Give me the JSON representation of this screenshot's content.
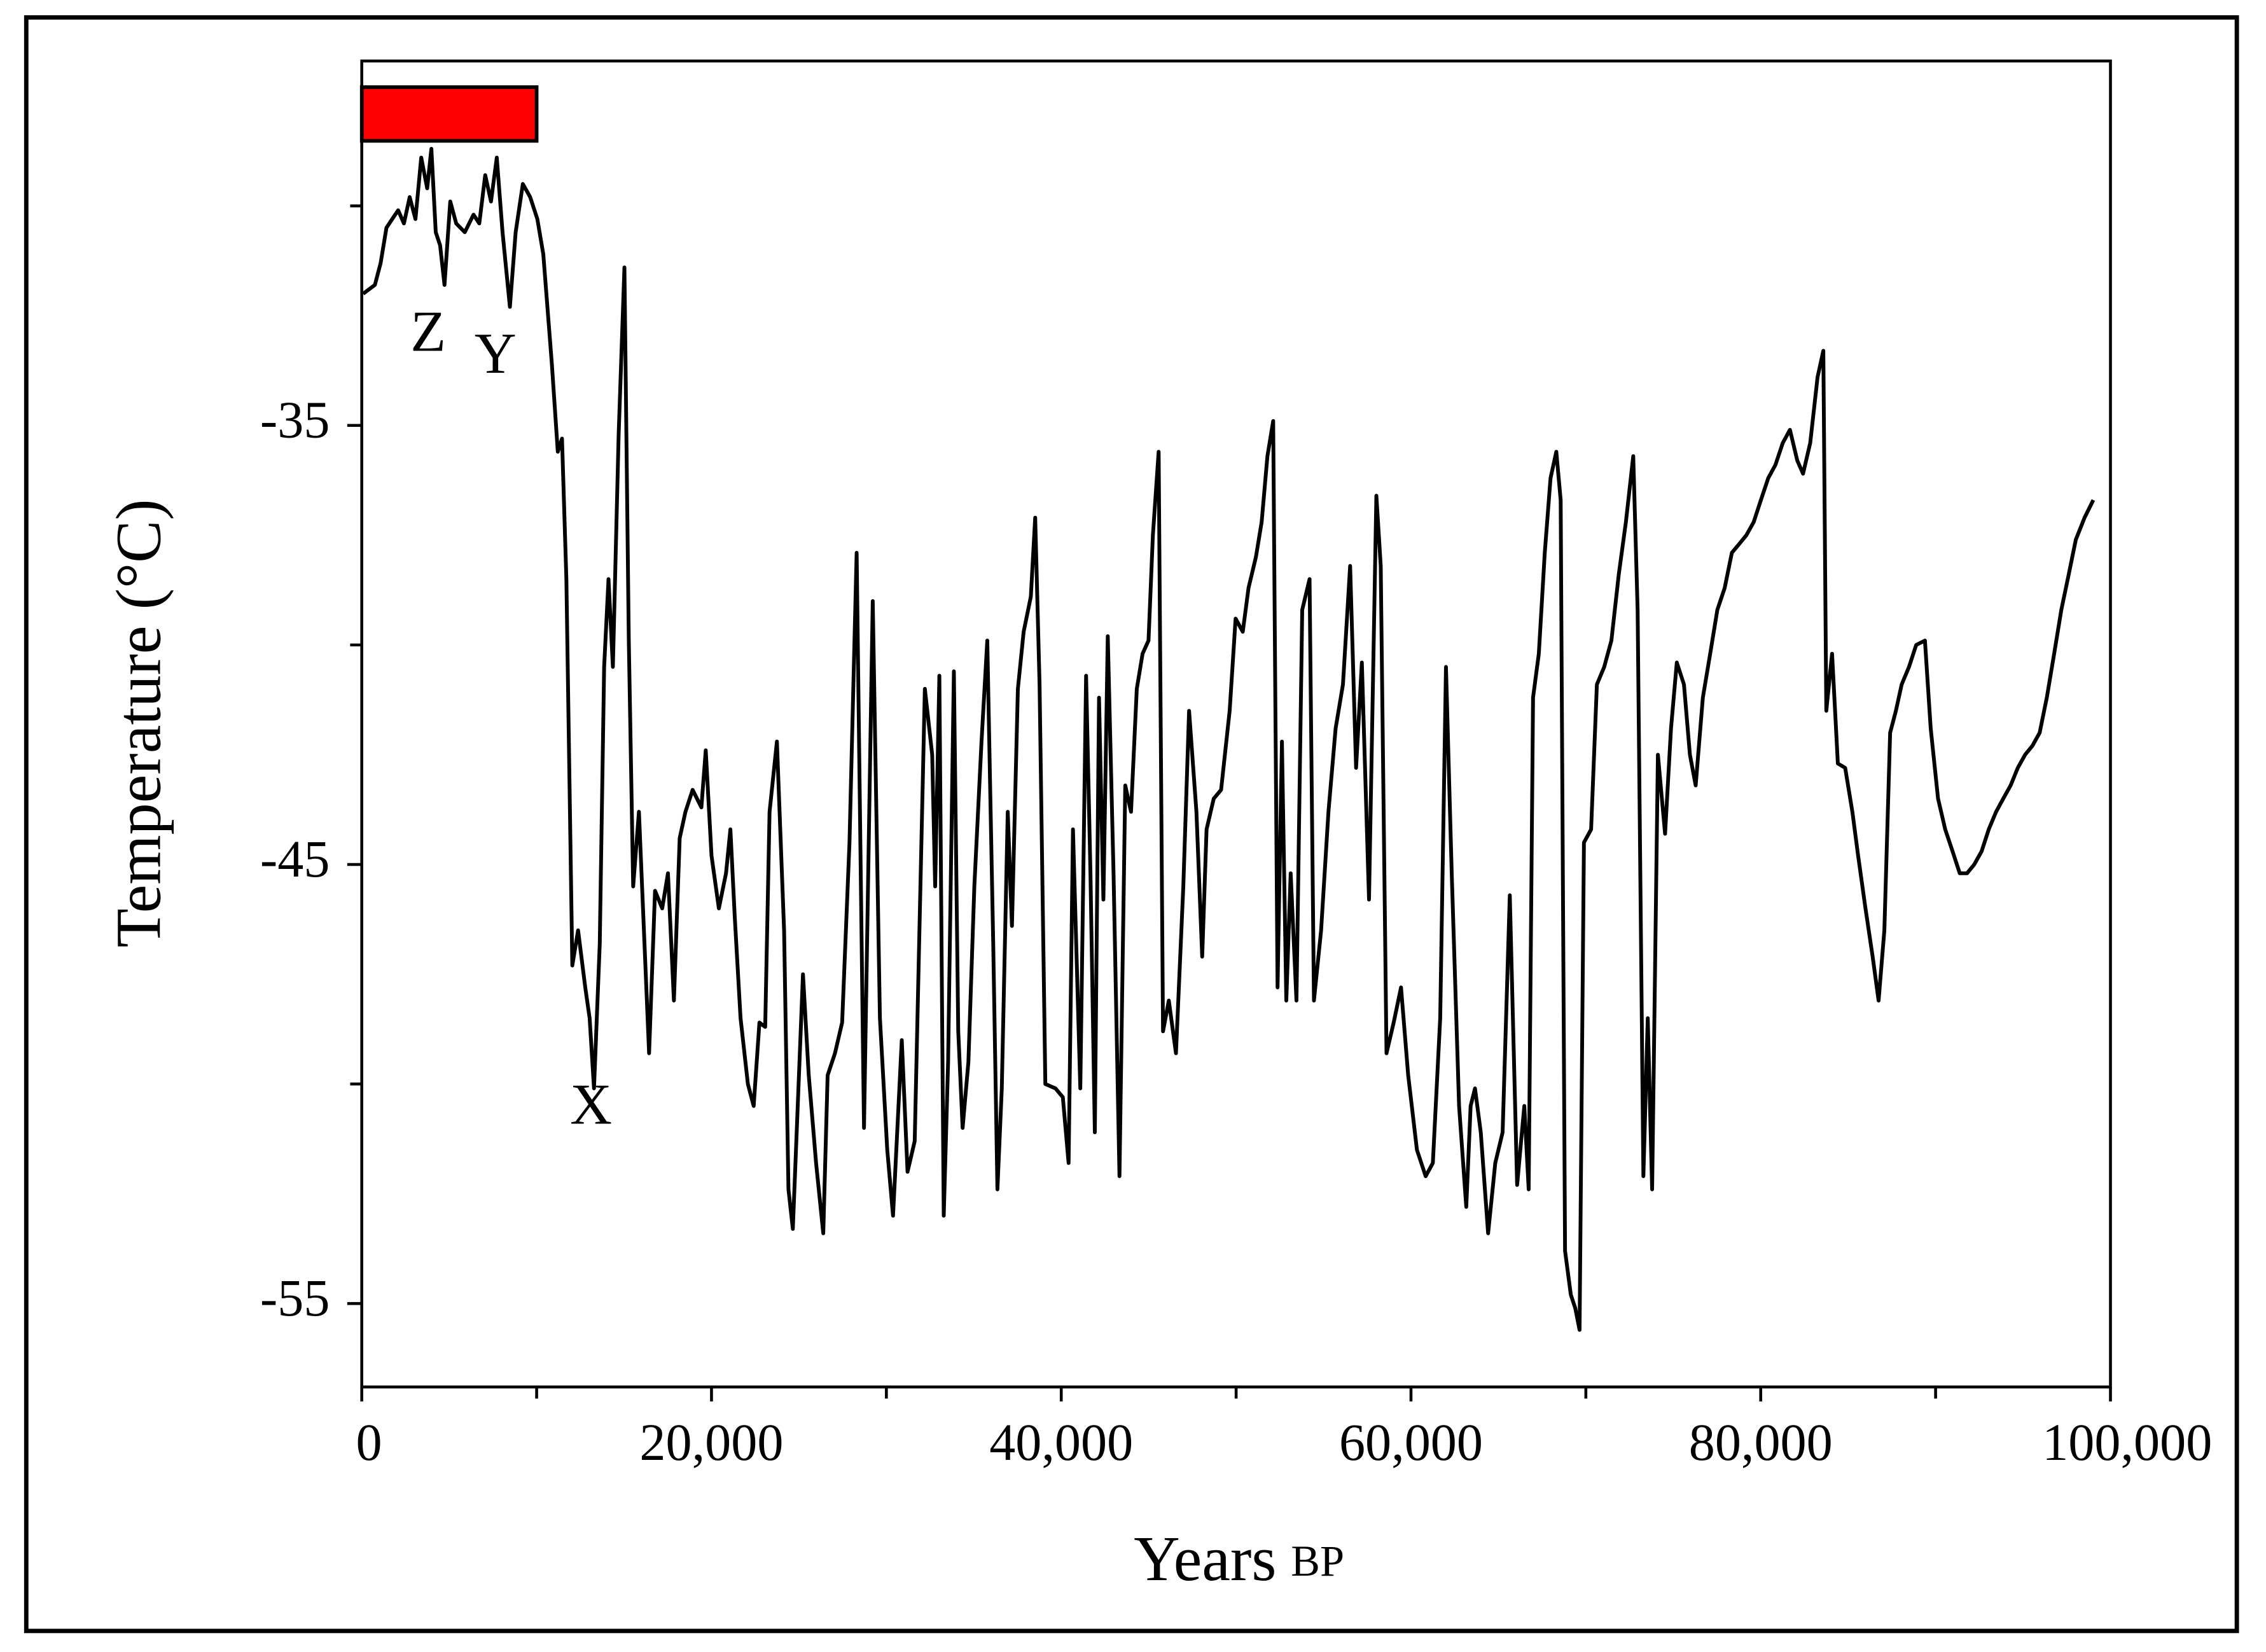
{
  "chart_data": {
    "type": "line",
    "ylabel": "Temperature (°C)",
    "xlabel": "Years",
    "xlabel_unit": "BP",
    "color": "#000000",
    "xlim": [
      0,
      100000
    ],
    "ylim": [
      -56.9,
      -26.7
    ],
    "xticks": [
      0,
      {
        "value": 20000,
        "label": "20,000"
      },
      {
        "value": 40000,
        "label": "40,000"
      },
      {
        "value": 60000,
        "label": "60,000"
      },
      {
        "value": 80000,
        "label": "80,000"
      },
      {
        "value": 100000,
        "label": "100,000"
      }
    ],
    "minor_xticks": [
      10000,
      30000,
      50000,
      70000,
      90000
    ],
    "yticks": [
      -35,
      -45,
      -55
    ],
    "minor_yticks": [
      -30,
      -40,
      -50
    ],
    "highlight": {
      "x": [
        0,
        10000
      ],
      "color": "#ff0000"
    },
    "annotations": [
      {
        "text": "Z",
        "x": 3800,
        "y": -33.0
      },
      {
        "text": "Y",
        "x": 7640,
        "y": -33.5
      },
      {
        "text": "X",
        "x": 13110,
        "y": -50.6
      }
    ],
    "x": [
      80,
      750,
      1080,
      1410,
      1740,
      2080,
      2410,
      2740,
      3070,
      3400,
      3740,
      3980,
      4230,
      4480,
      4730,
      5060,
      5400,
      5890,
      6390,
      6720,
      7060,
      7390,
      7720,
      8050,
      8470,
      8800,
      9210,
      9630,
      10040,
      10380,
      10870,
      11210,
      11450,
      11700,
      12040,
      12370,
      12780,
      13030,
      13280,
      13610,
      13860,
      14110,
      14360,
      14690,
      15020,
      15270,
      15520,
      15850,
      16430,
      16770,
      17180,
      17510,
      17850,
      18180,
      18510,
      18920,
      19420,
      19670,
      20000,
      20420,
      20830,
      21080,
      21330,
      21660,
      22080,
      22410,
      22740,
      23070,
      23320,
      23740,
      24150,
      24400,
      24650,
      24900,
      25230,
      25560,
      25980,
      26390,
      26640,
      27060,
      27470,
      27890,
      28300,
      28720,
      29220,
      29630,
      30050,
      30380,
      30880,
      31210,
      31620,
      32200,
      32620,
      32790,
      33030,
      33280,
      33530,
      33860,
      34110,
      34360,
      34690,
      35030,
      35440,
      35770,
      36110,
      36350,
      36600,
      36940,
      37180,
      37520,
      37850,
      38260,
      38510,
      38760,
      39090,
      39670,
      40090,
      40420,
      40670,
      41090,
      41420,
      41670,
      41920,
      42160,
      42410,
      42660,
      42990,
      43330,
      43660,
      43990,
      44320,
      44650,
      44990,
      45240,
      45570,
      45820,
      46150,
      46560,
      46980,
      47310,
      47730,
      48060,
      48310,
      48720,
      49140,
      49630,
      49970,
      50380,
      50710,
      51130,
      51460,
      51790,
      52120,
      52370,
      52620,
      52870,
      53120,
      53450,
      53780,
      54200,
      54450,
      54860,
      55280,
      55690,
      56110,
      56520,
      56860,
      57190,
      57600,
      58020,
      58270,
      58600,
      59010,
      59430,
      59840,
      60340,
      60840,
      61250,
      61670,
      62000,
      62330,
      62750,
      63160,
      63410,
      63660,
      63990,
      64410,
      64820,
      65240,
      65650,
      66070,
      66480,
      66730,
      66980,
      67310,
      67650,
      67980,
      68310,
      68560,
      68810,
      69140,
      69390,
      69640,
      69890,
      70300,
      70630,
      71050,
      71460,
      71880,
      72290,
      72710,
      72960,
      73290,
      73540,
      73790,
      74120,
      74530,
      74870,
      75200,
      75610,
      75950,
      76280,
      76690,
      77110,
      77520,
      77940,
      78350,
      78770,
      79180,
      79600,
      80010,
      80430,
      80840,
      81260,
      81670,
      82090,
      82420,
      82830,
      83250,
      83580,
      83750,
      84080,
      84410,
      84830,
      85240,
      85570,
      85990,
      86400,
      86740,
      87070,
      87400,
      87730,
      88060,
      88480,
      88890,
      89390,
      89720,
      90140,
      90550,
      90970,
      91380,
      91800,
      92210,
      92630,
      93040,
      93460,
      93870,
      94290,
      94700,
      95120,
      95530,
      95950,
      96360,
      96780,
      97190,
      97610,
      98020,
      98520,
      99020
    ],
    "values": [
      -32.0,
      -31.8,
      -31.3,
      -30.5,
      -30.3,
      -30.1,
      -30.4,
      -29.8,
      -30.3,
      -28.9,
      -29.6,
      -28.7,
      -30.6,
      -30.9,
      -31.8,
      -29.9,
      -30.4,
      -30.6,
      -30.2,
      -30.4,
      -29.3,
      -29.9,
      -28.9,
      -30.6,
      -32.3,
      -30.6,
      -29.5,
      -29.8,
      -30.3,
      -31.1,
      -33.6,
      -35.6,
      -35.3,
      -38.5,
      -47.3,
      -46.5,
      -47.8,
      -48.5,
      -50.1,
      -46.8,
      -40.5,
      -38.5,
      -40.5,
      -35.2,
      -31.4,
      -39.9,
      -45.5,
      -43.8,
      -49.3,
      -45.6,
      -46.0,
      -45.2,
      -48.1,
      -44.4,
      -43.8,
      -43.3,
      -43.7,
      -42.4,
      -44.8,
      -46.0,
      -45.2,
      -44.2,
      -46.2,
      -48.5,
      -50.0,
      -50.5,
      -48.6,
      -48.7,
      -43.8,
      -42.2,
      -46.5,
      -52.4,
      -53.3,
      -50.8,
      -47.5,
      -49.8,
      -51.8,
      -53.4,
      -49.8,
      -49.3,
      -48.6,
      -44.5,
      -37.9,
      -51.0,
      -39.0,
      -48.5,
      -51.5,
      -53.0,
      -49.0,
      -52.0,
      -51.3,
      -41.0,
      -42.5,
      -45.5,
      -40.7,
      -53.0,
      -49.5,
      -40.6,
      -48.8,
      -51.0,
      -49.5,
      -45.5,
      -42.2,
      -39.9,
      -46.8,
      -52.4,
      -50.1,
      -43.8,
      -46.4,
      -41.0,
      -39.7,
      -38.9,
      -37.1,
      -40.9,
      -50.0,
      -50.1,
      -50.3,
      -51.8,
      -44.2,
      -50.1,
      -40.7,
      -45.2,
      -51.1,
      -41.2,
      -45.8,
      -39.8,
      -45.2,
      -52.1,
      -43.2,
      -43.8,
      -41.0,
      -40.2,
      -39.9,
      -37.5,
      -35.6,
      -48.8,
      -48.1,
      -49.3,
      -45.5,
      -41.5,
      -43.8,
      -47.1,
      -44.2,
      -43.5,
      -43.3,
      -41.5,
      -39.4,
      -39.7,
      -38.7,
      -38.0,
      -37.2,
      -35.7,
      -34.9,
      -47.8,
      -42.2,
      -48.1,
      -45.2,
      -48.1,
      -39.2,
      -38.5,
      -48.1,
      -46.5,
      -43.8,
      -41.9,
      -40.9,
      -38.2,
      -42.8,
      -40.4,
      -45.8,
      -36.6,
      -38.2,
      -49.3,
      -48.6,
      -47.8,
      -49.8,
      -51.5,
      -52.1,
      -51.8,
      -48.5,
      -40.5,
      -45.2,
      -50.5,
      -52.8,
      -50.5,
      -50.1,
      -51.1,
      -53.4,
      -51.8,
      -51.1,
      -45.7,
      -52.3,
      -50.5,
      -52.4,
      -41.2,
      -40.2,
      -37.9,
      -36.2,
      -35.6,
      -36.7,
      -53.8,
      -54.8,
      -55.1,
      -55.6,
      -44.5,
      -44.2,
      -40.9,
      -40.5,
      -39.9,
      -38.4,
      -37.2,
      -35.7,
      -39.2,
      -52.1,
      -48.5,
      -52.4,
      -42.5,
      -44.3,
      -41.9,
      -40.4,
      -40.9,
      -42.5,
      -43.2,
      -41.2,
      -40.2,
      -39.2,
      -38.7,
      -37.9,
      -37.7,
      -37.5,
      -37.2,
      -36.7,
      -36.2,
      -35.9,
      -35.4,
      -35.1,
      -35.8,
      -36.1,
      -35.4,
      -33.9,
      -33.3,
      -41.5,
      -40.2,
      -42.7,
      -42.8,
      -43.8,
      -44.8,
      -46.0,
      -47.1,
      -48.1,
      -46.5,
      -42.0,
      -41.5,
      -40.9,
      -40.5,
      -40.0,
      -39.9,
      -41.9,
      -43.5,
      -44.2,
      -44.7,
      -45.2,
      -45.2,
      -45.0,
      -44.7,
      -44.2,
      -43.8,
      -43.5,
      -43.2,
      -42.8,
      -42.5,
      -42.3,
      -42.0,
      -41.2,
      -40.2,
      -39.2,
      -38.4,
      -37.6,
      -37.1,
      -36.7
    ]
  }
}
